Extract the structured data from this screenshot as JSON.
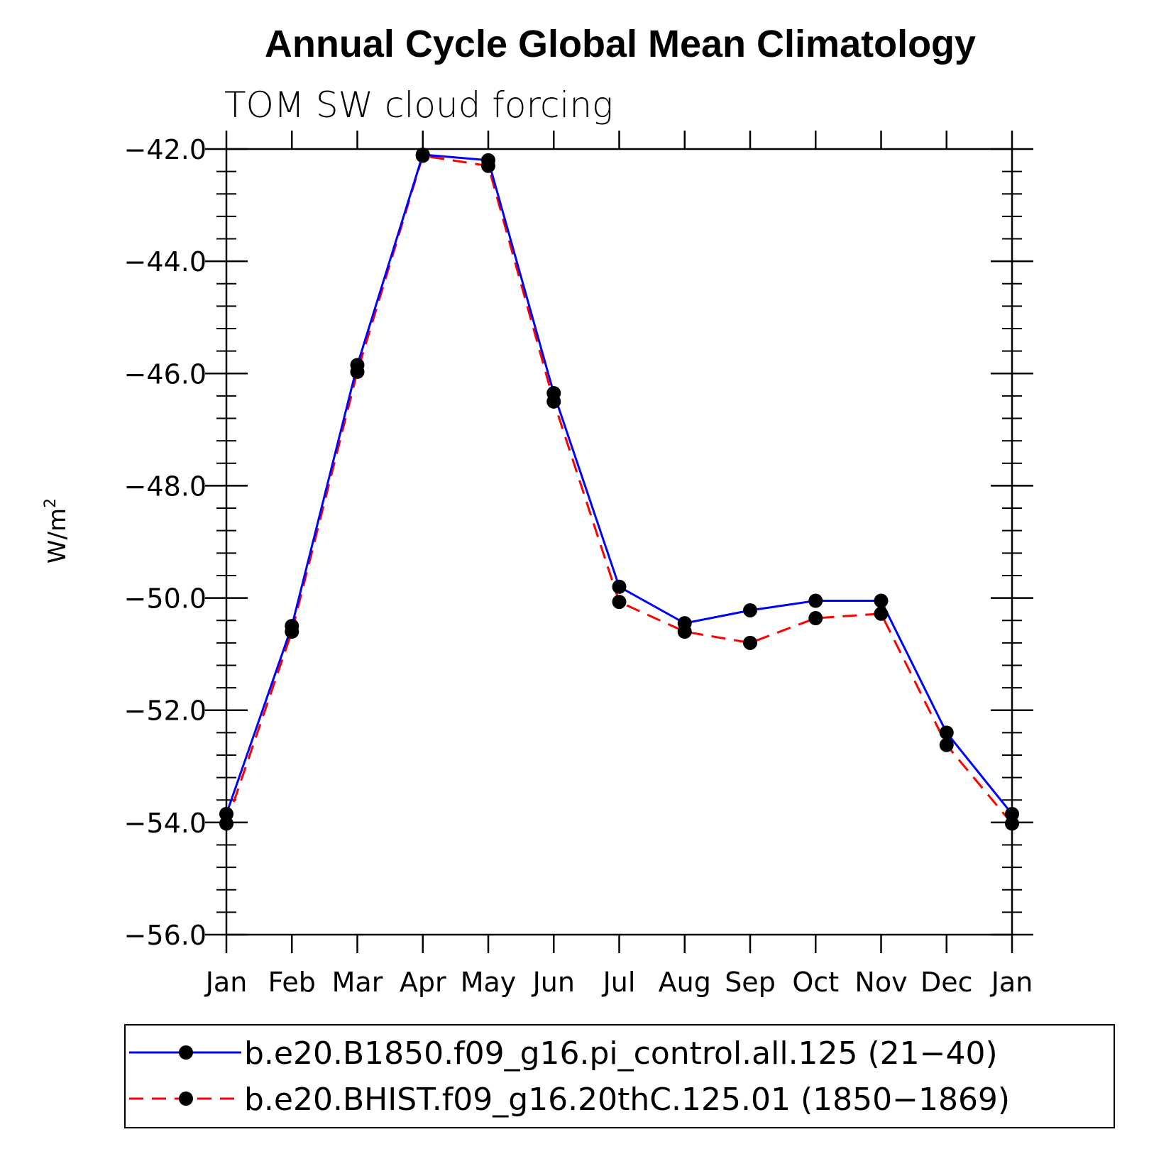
{
  "chart_data": {
    "type": "line",
    "title": "Annual Cycle Global Mean Climatology",
    "subtitle": "TOM SW cloud forcing",
    "ylabel": "W/m",
    "ylabel_sup": "2",
    "xlabel": "",
    "categories": [
      "Jan",
      "Feb",
      "Mar",
      "Apr",
      "May",
      "Jun",
      "Jul",
      "Aug",
      "Sep",
      "Oct",
      "Nov",
      "Dec",
      "Jan"
    ],
    "ylim": [
      -56.0,
      -42.0
    ],
    "yticks": [
      -42.0,
      -44.0,
      -46.0,
      -48.0,
      -50.0,
      -52.0,
      -54.0,
      -56.0
    ],
    "ytick_labels": [
      "−42.0",
      "−44.0",
      "−46.0",
      "−48.0",
      "−50.0",
      "−52.0",
      "−54.0",
      "−56.0"
    ],
    "legend_placement": "bottom",
    "series": [
      {
        "name": "b.e20.B1850.f09_g16.pi_control.all.125 (21−40)",
        "color": "#0000ff",
        "style": "solid",
        "marker": "filled-circle",
        "values": [
          -53.85,
          -50.5,
          -45.85,
          -42.1,
          -42.2,
          -46.35,
          -49.8,
          -50.45,
          -50.22,
          -50.05,
          -50.05,
          -52.4,
          -53.85
        ]
      },
      {
        "name": "b.e20.BHIST.f09_g16.20thC.125.01 (1850−1869)",
        "color": "#ff0000",
        "style": "dashed",
        "marker": "filled-circle",
        "values": [
          -54.02,
          -50.6,
          -45.97,
          -42.12,
          -42.3,
          -46.5,
          -50.07,
          -50.6,
          -50.8,
          -50.36,
          -50.28,
          -52.62,
          -54.02
        ]
      }
    ]
  }
}
